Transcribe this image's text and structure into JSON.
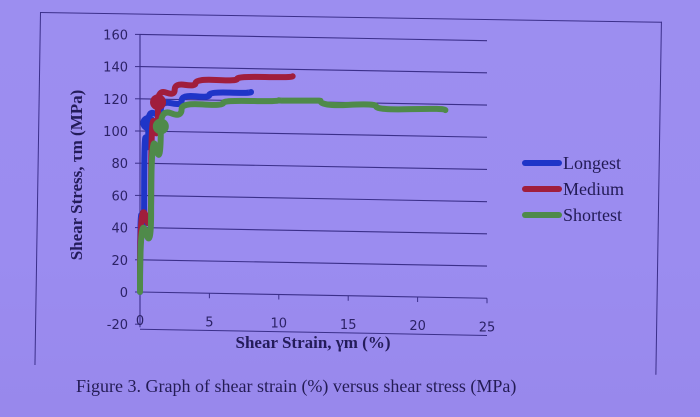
{
  "chart_data": {
    "type": "line",
    "title": "",
    "xlabel": "Shear Strain, γm (%)",
    "ylabel": "Shear Stress, τm (MPa)",
    "xlim": [
      0,
      25
    ],
    "ylim": [
      -20,
      160
    ],
    "x_ticks": [
      "0",
      "5",
      "10",
      "15",
      "20",
      "25"
    ],
    "y_ticks": [
      "-20",
      "0",
      "20",
      "40",
      "60",
      "80",
      "100",
      "120",
      "140",
      "160"
    ],
    "grid": "horizontal",
    "legend_position": "right",
    "series": [
      {
        "name": "Longest",
        "color": "#1f35c8",
        "x": [
          0,
          0.3,
          0.6,
          1.5,
          3,
          5,
          8
        ],
        "y": [
          0,
          60,
          105,
          113,
          119,
          123,
          125
        ],
        "marker": {
          "x": 0.6,
          "y": 105
        }
      },
      {
        "name": "Medium",
        "color": "#a01e3c",
        "x": [
          0,
          0.8,
          1.3,
          2.5,
          4,
          7,
          11
        ],
        "y": [
          8,
          60,
          118,
          126,
          130,
          133,
          135
        ],
        "marker": {
          "x": 1.3,
          "y": 118
        }
      },
      {
        "name": "Shortest",
        "color": "#4f8a4a",
        "x": [
          0,
          0.8,
          1.5,
          3,
          6,
          10,
          13,
          17,
          22
        ],
        "y": [
          0,
          50,
          103,
          114,
          118,
          120,
          120,
          117,
          115
        ],
        "marker": {
          "x": 1.5,
          "y": 103
        }
      }
    ]
  },
  "legend": {
    "items": [
      {
        "label": "Longest",
        "color": "#1f35c8"
      },
      {
        "label": "Medium",
        "color": "#a01e3c"
      },
      {
        "label": "Shortest",
        "color": "#4f8a4a"
      }
    ]
  },
  "caption": "Figure 3. Graph of shear strain (%) versus shear stress (MPa)"
}
